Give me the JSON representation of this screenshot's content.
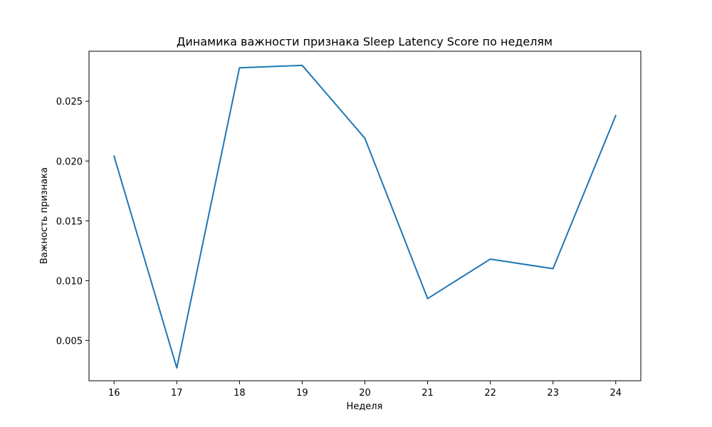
{
  "chart_data": {
    "type": "line",
    "title": "Динамика важности признака Sleep Latency Score по неделям",
    "xlabel": "Неделя",
    "ylabel": "Важность признака",
    "x": [
      16,
      17,
      18,
      19,
      20,
      21,
      22,
      23,
      24
    ],
    "x_ticks": [
      "16",
      "17",
      "18",
      "19",
      "20",
      "21",
      "22",
      "23",
      "24"
    ],
    "y_ticks": [
      "0.005",
      "0.010",
      "0.015",
      "0.020",
      "0.025"
    ],
    "y_tick_values": [
      0.005,
      0.01,
      0.015,
      0.02,
      0.025
    ],
    "xlim": [
      15.6,
      24.4
    ],
    "ylim": [
      0.00163,
      0.02918
    ],
    "grid": false,
    "series": [
      {
        "color": "#1f77b4",
        "values": [
          0.0204,
          0.0027,
          0.0278,
          0.028,
          0.0219,
          0.0085,
          0.0118,
          0.011,
          0.0238
        ]
      }
    ]
  }
}
